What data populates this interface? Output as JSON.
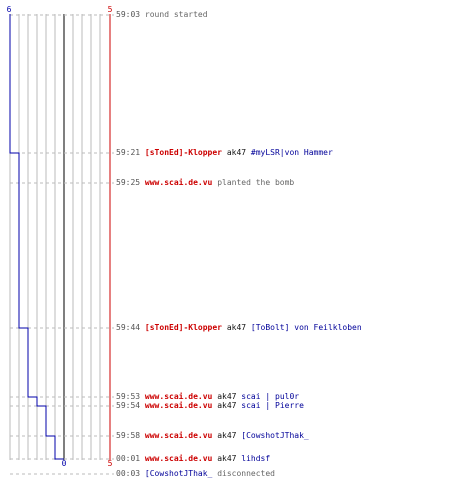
{
  "header": {
    "left_count": "6",
    "right_count": "5"
  },
  "footer": {
    "mid_count": "0",
    "right_count": "5"
  },
  "colors": {
    "terrorist": "#cc0000",
    "ct": "#000099",
    "grid": "#bbbbbb",
    "center": "#555555",
    "dashed": "#bbbbbb"
  },
  "events": [
    {
      "time": "59:03",
      "text": "round started",
      "type": "system"
    },
    {
      "time": "59:21",
      "killer": "[sTonEd]-Klopper",
      "weapon": "ak47",
      "victim": "#myLSR|von Hammer",
      "killer_team": "t",
      "victim_team": "ct"
    },
    {
      "time": "59:25",
      "killer": "www.scai.de.vu",
      "action": "planted the bomb",
      "killer_team": "t"
    },
    {
      "time": "59:44",
      "killer": "[sTonEd]-Klopper",
      "weapon": "ak47",
      "victim": "[ToBolt] von Feilkloben",
      "killer_team": "t",
      "victim_team": "ct"
    },
    {
      "time": "59:53",
      "killer": "www.scai.de.vu",
      "weapon": "ak47",
      "victim": "scai | pul0r",
      "killer_team": "t",
      "victim_team": "ct"
    },
    {
      "time": "59:54",
      "killer": "www.scai.de.vu",
      "weapon": "ak47",
      "victim": "scai | Pierre",
      "killer_team": "t",
      "victim_team": "ct"
    },
    {
      "time": "59:58",
      "killer": "www.scai.de.vu",
      "weapon": "ak47",
      "victim": "[CowshotJThak_",
      "killer_team": "t",
      "victim_team": "ct"
    },
    {
      "time": "00:01",
      "killer": "www.scai.de.vu",
      "weapon": "ak47",
      "victim": "lihdsf",
      "killer_team": "t",
      "victim_team": "ct"
    },
    {
      "time": "00:03",
      "player": "[CowshotJThak_",
      "action": "disconnected",
      "type": "disconnect"
    }
  ]
}
